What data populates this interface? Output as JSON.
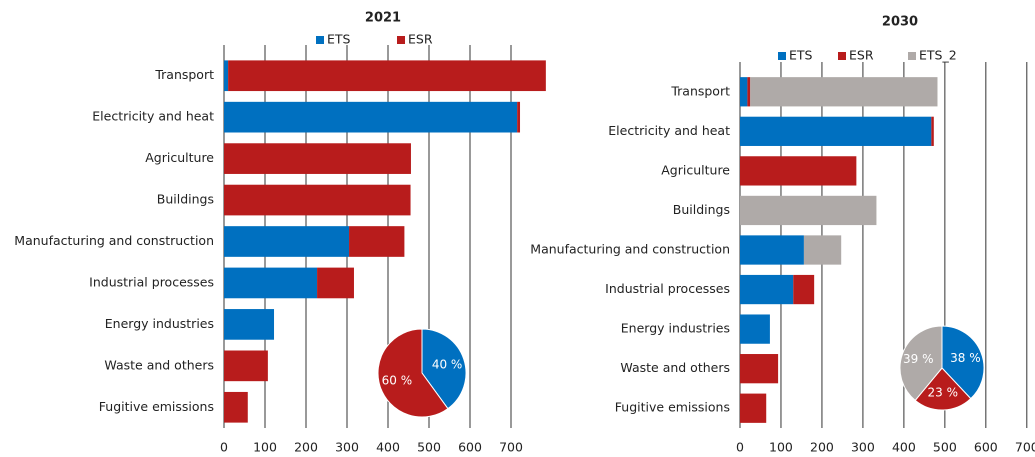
{
  "chart_data": [
    {
      "type": "bar",
      "orientation": "horizontal",
      "stacked": true,
      "title": "2021",
      "categories": [
        "Transport",
        "Electricity and heat",
        "Agriculture",
        "Buildings",
        "Manufacturing and construction",
        "Industrial processes",
        "Energy industries",
        "Waste and others",
        "Fugitive emissions"
      ],
      "series": [
        {
          "name": "ETS",
          "color": "#0070c0",
          "values": [
            10,
            715,
            0,
            0,
            305,
            227,
            122,
            0,
            0
          ]
        },
        {
          "name": "ESR",
          "color": "#b81c1c",
          "values": [
            775,
            7,
            456,
            455,
            135,
            90,
            0,
            107,
            58
          ]
        }
      ],
      "xlim": [
        0,
        800
      ],
      "xticks": [
        0,
        100,
        200,
        300,
        400,
        500,
        600,
        700
      ],
      "grid": true
    },
    {
      "type": "pie",
      "categories": [
        "ETS",
        "ESR"
      ],
      "values": [
        40,
        60
      ],
      "value_labels": [
        "40 %",
        "60 %"
      ],
      "colors": [
        "#0070c0",
        "#b81c1c"
      ]
    },
    {
      "type": "bar",
      "orientation": "horizontal",
      "stacked": true,
      "title": "2030",
      "categories": [
        "Transport",
        "Electricity and heat",
        "Agriculture",
        "Buildings",
        "Manufacturing and construction",
        "Industrial processes",
        "Energy industries",
        "Waste and others",
        "Fugitive emissions"
      ],
      "series": [
        {
          "name": "ETS",
          "color": "#0070c0",
          "values": [
            18,
            467,
            0,
            0,
            156,
            130,
            73,
            0,
            0
          ]
        },
        {
          "name": "ESR",
          "color": "#b81c1c",
          "values": [
            7,
            6,
            284,
            0,
            0,
            51,
            0,
            93,
            64
          ]
        },
        {
          "name": "ETS_2",
          "color": "#afaaa8",
          "values": [
            457,
            0,
            0,
            333,
            91,
            0,
            0,
            0,
            0
          ]
        }
      ],
      "xlim": [
        0,
        720
      ],
      "xticks": [
        0,
        100,
        200,
        300,
        400,
        500,
        600,
        700
      ],
      "grid": true
    },
    {
      "type": "pie",
      "categories": [
        "ETS",
        "ESR",
        "ETS_2"
      ],
      "values": [
        38,
        23,
        39
      ],
      "value_labels": [
        "38 %",
        "23 %",
        "39 %"
      ],
      "colors": [
        "#0070c0",
        "#b81c1c",
        "#afaaa8"
      ]
    }
  ]
}
